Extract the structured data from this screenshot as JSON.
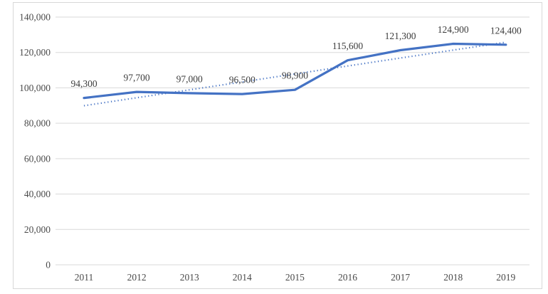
{
  "chart_data": {
    "type": "line",
    "title": "",
    "xlabel": "",
    "ylabel": "",
    "x": [
      "2011",
      "2012",
      "2013",
      "2014",
      "2015",
      "2016",
      "2017",
      "2018",
      "2019"
    ],
    "series": [
      {
        "name": "annual-values",
        "style": "solid",
        "values": [
          94300,
          97700,
          97000,
          96500,
          98900,
          115600,
          121300,
          124900,
          124400
        ],
        "data_labels": [
          "94,300",
          "97,700",
          "97,000",
          "96,500",
          "98,900",
          "115,600",
          "121,300",
          "124,900",
          "124,400"
        ]
      },
      {
        "name": "linear-trendline",
        "style": "dotted",
        "values": [
          89900,
          94400,
          98900,
          103350,
          107850,
          112350,
          116850,
          121350,
          125800
        ],
        "data_labels": []
      }
    ],
    "ylim": [
      0,
      140000
    ],
    "yticks": [
      0,
      20000,
      40000,
      60000,
      80000,
      100000,
      120000,
      140000
    ],
    "ytick_labels": [
      "0",
      "20,000",
      "40,000",
      "60,000",
      "80,000",
      "100,000",
      "120,000",
      "140,000"
    ],
    "grid": true,
    "legend": false
  },
  "colors": {
    "line": "#4472C4",
    "trendline": "#4472C4",
    "grid": "#d9d9d9",
    "axis_text": "#4a4a4a",
    "data_label_text": "#3c3c3c",
    "frame_border": "#d8d8d8",
    "background": "#ffffff"
  }
}
